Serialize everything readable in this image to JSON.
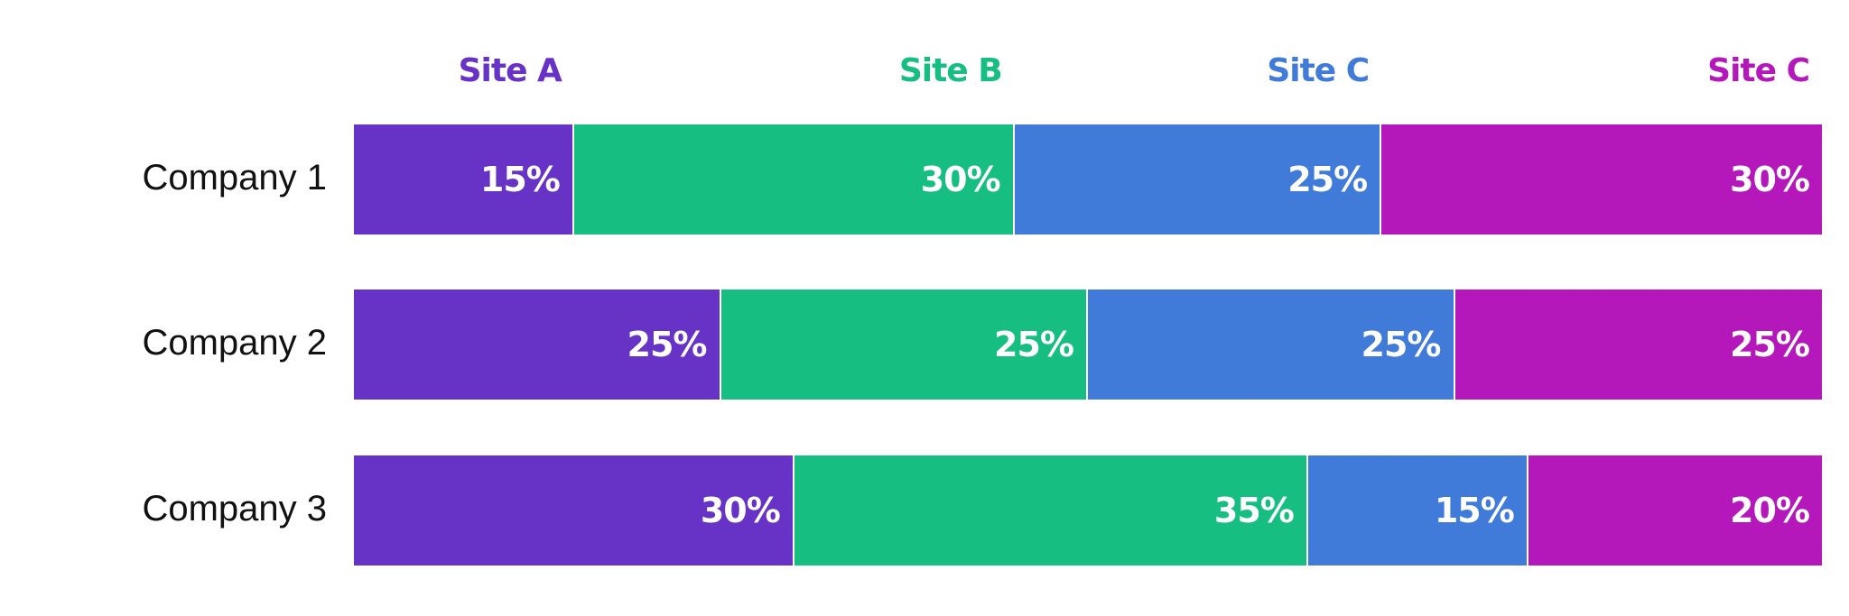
{
  "chart_data": {
    "type": "bar",
    "orientation": "horizontal",
    "stacked": true,
    "normalized_percent": true,
    "categories": [
      "Company 1",
      "Company 2",
      "Company 3"
    ],
    "series": [
      {
        "name": "Site A",
        "color": "#6733C6",
        "values": [
          15,
          25,
          30
        ],
        "labels": [
          "15%",
          "25%",
          "30%"
        ]
      },
      {
        "name": "Site B",
        "color": "#16BF81",
        "values": [
          30,
          25,
          35
        ],
        "labels": [
          "30%",
          "25%",
          "35%"
        ]
      },
      {
        "name": "Site C",
        "color": "#407BD9",
        "values": [
          25,
          25,
          15
        ],
        "labels": [
          "25%",
          "25%",
          "15%"
        ]
      },
      {
        "name": "Site C",
        "color": "#B518BA",
        "values": [
          30,
          25,
          20
        ],
        "labels": [
          "30%",
          "25%",
          "20%"
        ]
      }
    ],
    "xlim": [
      0,
      100
    ],
    "grid": false,
    "legend": "top, above each segment"
  }
}
